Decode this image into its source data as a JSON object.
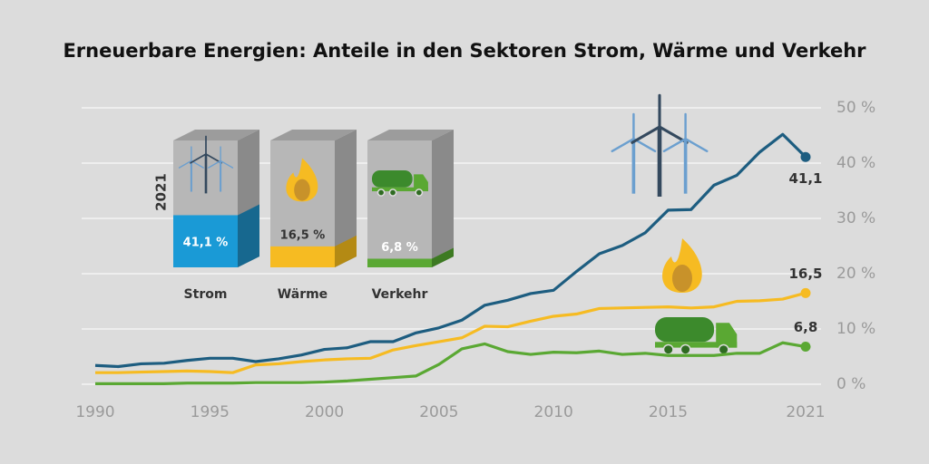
{
  "chart_data": {
    "type": "line",
    "title": "Erneuerbare Energien: Anteile in den Sektoren Strom, Wärme und Verkehr",
    "x": [
      1990,
      1991,
      1992,
      1993,
      1994,
      1995,
      1996,
      1997,
      1998,
      1999,
      2000,
      2001,
      2002,
      2003,
      2004,
      2005,
      2006,
      2007,
      2008,
      2009,
      2010,
      2011,
      2012,
      2013,
      2014,
      2015,
      2016,
      2017,
      2018,
      2019,
      2020,
      2021
    ],
    "xlim": [
      1990,
      2021
    ],
    "xticks": [
      1990,
      1995,
      2000,
      2005,
      2010,
      2015,
      2021
    ],
    "ylim": [
      0,
      50
    ],
    "yticks": [
      {
        "value": 0,
        "label": "0 %"
      },
      {
        "value": 10,
        "label": "10 %"
      },
      {
        "value": 20,
        "label": "20 %"
      },
      {
        "value": 30,
        "label": "30 %"
      },
      {
        "value": 40,
        "label": "40 %"
      },
      {
        "value": 50,
        "label": "50 %"
      }
    ],
    "grid": true,
    "series": [
      {
        "name": "Strom",
        "color": "#1d5d80",
        "values": [
          3.4,
          3.2,
          3.7,
          3.8,
          4.3,
          4.7,
          4.7,
          4.1,
          4.6,
          5.3,
          6.3,
          6.6,
          7.7,
          7.7,
          9.3,
          10.2,
          11.6,
          14.3,
          15.2,
          16.4,
          17.0,
          20.4,
          23.6,
          25.1,
          27.4,
          31.5,
          31.6,
          36.0,
          37.8,
          42.0,
          45.2,
          41.1
        ],
        "value_labels": [
          null,
          null,
          null,
          null,
          null,
          null,
          null,
          null,
          null,
          null,
          null,
          null,
          null,
          null,
          null,
          null,
          null,
          null,
          null,
          null,
          null,
          null,
          null,
          null,
          null,
          null,
          null,
          null,
          null,
          null,
          null,
          "41,1"
        ]
      },
      {
        "name": "Wärme",
        "color": "#f6bb22",
        "values": [
          2.1,
          2.1,
          2.2,
          2.3,
          2.4,
          2.3,
          2.1,
          3.5,
          3.7,
          4.1,
          4.4,
          4.6,
          4.7,
          6.2,
          7.0,
          7.7,
          8.4,
          10.5,
          10.4,
          11.4,
          12.3,
          12.7,
          13.7,
          13.8,
          13.9,
          14.0,
          13.8,
          14.0,
          15.0,
          15.1,
          15.4,
          16.5
        ],
        "value_labels": [
          null,
          null,
          null,
          null,
          null,
          null,
          null,
          null,
          null,
          null,
          null,
          null,
          null,
          null,
          null,
          null,
          null,
          null,
          null,
          null,
          null,
          null,
          null,
          null,
          null,
          null,
          null,
          null,
          null,
          null,
          null,
          "16,5"
        ]
      },
      {
        "name": "Verkehr",
        "color": "#5aa833",
        "values": [
          0.1,
          0.1,
          0.1,
          0.1,
          0.2,
          0.2,
          0.2,
          0.3,
          0.3,
          0.3,
          0.4,
          0.6,
          0.9,
          1.2,
          1.5,
          3.6,
          6.4,
          7.3,
          5.9,
          5.4,
          5.8,
          5.7,
          6.0,
          5.4,
          5.6,
          5.2,
          5.2,
          5.2,
          5.6,
          5.6,
          7.5,
          6.8
        ],
        "value_labels": [
          null,
          null,
          null,
          null,
          null,
          null,
          null,
          null,
          null,
          null,
          null,
          null,
          null,
          null,
          null,
          null,
          null,
          null,
          null,
          null,
          null,
          null,
          null,
          null,
          null,
          null,
          null,
          null,
          null,
          null,
          null,
          "6,8"
        ]
      }
    ],
    "infographic": {
      "year": "2021",
      "ylim": [
        0,
        100
      ],
      "boxes": [
        {
          "label": "Strom",
          "value": 41.1,
          "value_label": "41,1 %",
          "color": "#1a9ad6",
          "side_color": "#17688f"
        },
        {
          "label": "Wärme",
          "value": 16.5,
          "value_label": "16,5 %",
          "color": "#f6bb22",
          "side_color": "#b48a14"
        },
        {
          "label": "Verkehr",
          "value": 6.8,
          "value_label": "6,8 %",
          "color": "#5aa833",
          "side_color": "#3d7a22"
        }
      ]
    }
  }
}
